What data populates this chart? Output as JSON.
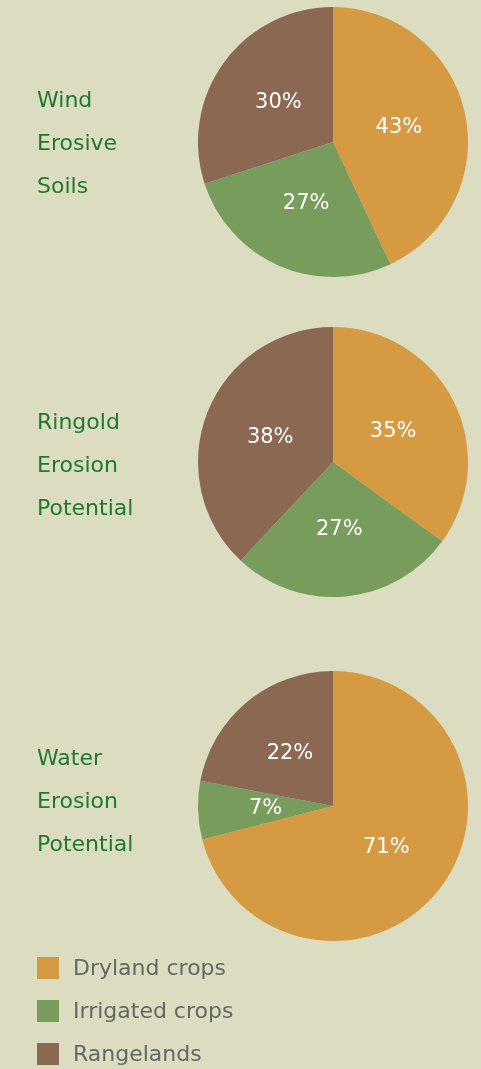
{
  "chart_data": [
    {
      "type": "pie",
      "title": "Wind Erosive Soils",
      "categories": [
        null,
        null,
        null
      ],
      "values": [
        43,
        27,
        30
      ],
      "colors": [
        "#d59a42",
        "#789c5c",
        "#8b6852"
      ],
      "value_labels": [
        "43%",
        "27%",
        "30%"
      ]
    },
    {
      "type": "pie",
      "title": "Ringold Erosion Potential",
      "categories": [
        null,
        null,
        null
      ],
      "values": [
        35,
        27,
        38
      ],
      "colors": [
        "#d59a42",
        "#789c5c",
        "#8b6852"
      ],
      "value_labels": [
        "35%",
        "27%",
        "38%"
      ]
    },
    {
      "type": "pie",
      "title": "Water Erosion Potential",
      "categories": [
        "Dryland crops",
        "Irrigated crops",
        "Rangelands"
      ],
      "values": [
        71,
        7,
        22
      ],
      "colors": [
        "#d59a42",
        "#789c5c",
        "#8b6852"
      ],
      "value_labels": [
        "71%",
        "7%",
        "22%"
      ],
      "legend": "bottom"
    }
  ]
}
